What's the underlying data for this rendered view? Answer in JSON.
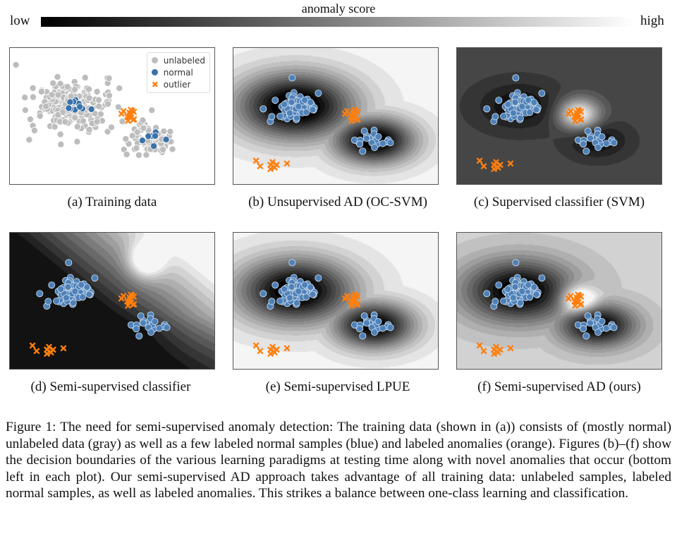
{
  "colorbar": {
    "title": "anomaly score",
    "low": "low",
    "high": "high"
  },
  "legend": {
    "unlabeled": "unlabeled",
    "normal": "normal",
    "outlier": "outlier"
  },
  "colors": {
    "unlabeled": "#bdbdbd",
    "normal": "#3a72aa",
    "outlier": "#ff7f0e"
  },
  "panels": [
    {
      "id": "a",
      "caption": "(a)  Training data"
    },
    {
      "id": "b",
      "caption": "(b)  Unsupervised AD (OC-SVM)"
    },
    {
      "id": "c",
      "caption": "(c)  Supervised classifier (SVM)"
    },
    {
      "id": "d",
      "caption": "(d)  Semi-supervised classifier"
    },
    {
      "id": "e",
      "caption": "(e)  Semi-supervised LPUE"
    },
    {
      "id": "f",
      "caption": "(f)  Semi-supervised AD (ours)"
    }
  ],
  "figure_caption": "Figure 1: The need for semi-supervised anomaly detection: The training data (shown in (a)) consists of (mostly normal) unlabeled data (gray) as well as a few labeled normal samples (blue) and labeled anomalies (orange). Figures (b)–(f) show the decision boundaries of the various learning paradigms at testing time along with novel anomalies that occur (bottom left in each plot). Our semi-supervised AD approach takes advantage of all training data: unlabeled samples, labeled normal samples, as well as labeled anomalies. This strikes a balance between one-class learning and classification."
}
